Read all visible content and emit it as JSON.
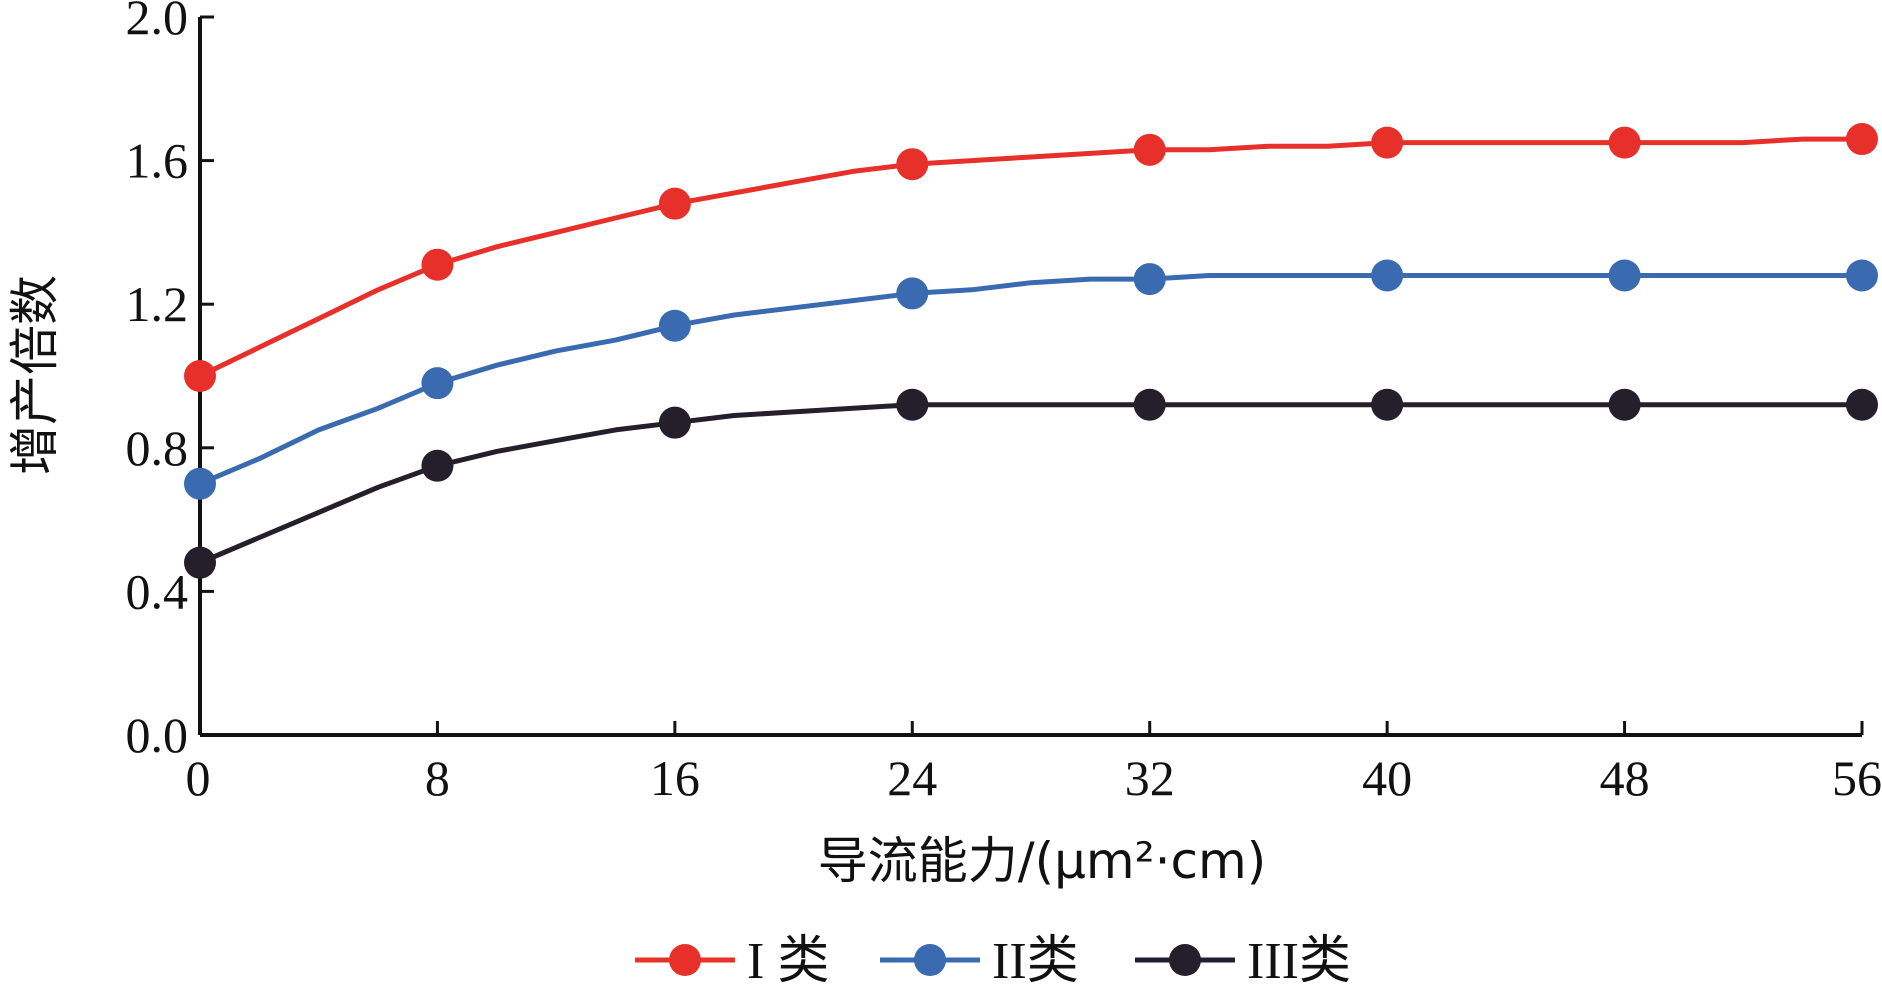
{
  "chart_data": {
    "type": "line",
    "xlabel": "导流能力/(μm²·cm)",
    "ylabel": "增产倍数",
    "x_ticks": [
      0,
      8,
      16,
      24,
      32,
      40,
      48,
      56
    ],
    "y_ticks": [
      "0.0",
      "0.4",
      "0.8",
      "1.2",
      "1.6",
      "2.0"
    ],
    "xlim": [
      0,
      56
    ],
    "ylim": [
      0,
      2.0
    ],
    "grid": false,
    "legend_position": "bottom",
    "series": [
      {
        "name": "I 类",
        "color": "#e8302a",
        "x": [
          0,
          2,
          4,
          6,
          8,
          10,
          12,
          14,
          16,
          18,
          20,
          22,
          24,
          26,
          28,
          30,
          32,
          34,
          36,
          38,
          40,
          42,
          44,
          46,
          48,
          50,
          52,
          54,
          56
        ],
        "values": [
          1.0,
          1.08,
          1.16,
          1.24,
          1.31,
          1.36,
          1.4,
          1.44,
          1.48,
          1.51,
          1.54,
          1.57,
          1.59,
          1.6,
          1.61,
          1.62,
          1.63,
          1.63,
          1.64,
          1.64,
          1.65,
          1.65,
          1.65,
          1.65,
          1.65,
          1.65,
          1.65,
          1.66,
          1.66
        ],
        "markers_x": [
          0,
          8,
          16,
          24,
          32,
          40,
          48,
          56
        ],
        "markers_values": [
          1.0,
          1.31,
          1.48,
          1.59,
          1.63,
          1.65,
          1.65,
          1.66
        ]
      },
      {
        "name": "II类",
        "color": "#3a6aaf",
        "x": [
          0,
          2,
          4,
          6,
          8,
          10,
          12,
          14,
          16,
          18,
          20,
          22,
          24,
          26,
          28,
          30,
          32,
          34,
          36,
          38,
          40,
          42,
          44,
          46,
          48,
          50,
          52,
          54,
          56
        ],
        "values": [
          0.7,
          0.77,
          0.85,
          0.91,
          0.98,
          1.03,
          1.07,
          1.1,
          1.14,
          1.17,
          1.19,
          1.21,
          1.23,
          1.24,
          1.26,
          1.27,
          1.27,
          1.28,
          1.28,
          1.28,
          1.28,
          1.28,
          1.28,
          1.28,
          1.28,
          1.28,
          1.28,
          1.28,
          1.28
        ],
        "markers_x": [
          0,
          8,
          16,
          24,
          32,
          40,
          48,
          56
        ],
        "markers_values": [
          0.7,
          0.98,
          1.14,
          1.23,
          1.27,
          1.28,
          1.28,
          1.28
        ]
      },
      {
        "name": "III类",
        "color": "#251e2b",
        "x": [
          0,
          2,
          4,
          6,
          8,
          10,
          12,
          14,
          16,
          18,
          20,
          22,
          24,
          26,
          28,
          30,
          32,
          34,
          36,
          38,
          40,
          42,
          44,
          46,
          48,
          50,
          52,
          54,
          56
        ],
        "values": [
          0.48,
          0.55,
          0.62,
          0.69,
          0.75,
          0.79,
          0.82,
          0.85,
          0.87,
          0.89,
          0.9,
          0.91,
          0.92,
          0.92,
          0.92,
          0.92,
          0.92,
          0.92,
          0.92,
          0.92,
          0.92,
          0.92,
          0.92,
          0.92,
          0.92,
          0.92,
          0.92,
          0.92,
          0.92
        ],
        "markers_x": [
          0,
          8,
          16,
          24,
          32,
          40,
          48,
          56
        ],
        "markers_values": [
          0.48,
          0.75,
          0.87,
          0.92,
          0.92,
          0.92,
          0.92,
          0.92
        ]
      }
    ]
  }
}
